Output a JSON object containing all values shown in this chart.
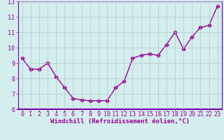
{
  "x": [
    0,
    1,
    2,
    3,
    4,
    5,
    6,
    7,
    8,
    9,
    10,
    11,
    12,
    13,
    14,
    15,
    16,
    17,
    18,
    19,
    20,
    21,
    22,
    23
  ],
  "y": [
    9.3,
    8.6,
    8.6,
    9.0,
    8.1,
    7.4,
    6.7,
    6.6,
    6.55,
    6.55,
    6.55,
    7.4,
    7.8,
    9.3,
    9.5,
    9.6,
    9.5,
    10.2,
    11.0,
    9.9,
    10.7,
    11.3,
    11.45,
    12.7
  ],
  "line_color": "#990099",
  "marker": "D",
  "markersize": 2.5,
  "linewidth": 1.0,
  "bg_color": "#d4eded",
  "grid_color": "#b0c8c8",
  "xlabel": "Windchill (Refroidissement éolien,°C)",
  "ylabel": "",
  "xlim": [
    -0.5,
    23.5
  ],
  "ylim": [
    6,
    13
  ],
  "yticks": [
    6,
    7,
    8,
    9,
    10,
    11,
    12,
    13
  ],
  "xticks": [
    0,
    1,
    2,
    3,
    4,
    5,
    6,
    7,
    8,
    9,
    10,
    11,
    12,
    13,
    14,
    15,
    16,
    17,
    18,
    19,
    20,
    21,
    22,
    23
  ],
  "xlabel_fontsize": 6.5,
  "tick_fontsize": 6.0,
  "tick_color": "#990099",
  "label_color": "#990099",
  "spine_color": "#7700aa"
}
